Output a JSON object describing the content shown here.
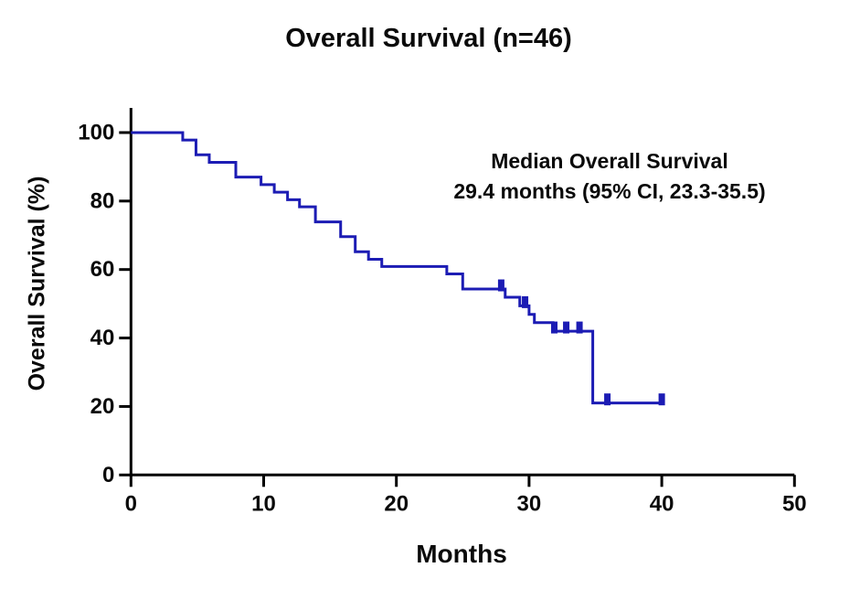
{
  "annotation": {
    "line1": "Median Overall Survival",
    "line2": "29.4 months (95% CI, 23.3-35.5)"
  },
  "chart_data": {
    "type": "line",
    "subtype": "kaplan-meier-step",
    "title": "Overall Survival (n=46)",
    "xlabel": "Months",
    "ylabel": "Overall Survival (%)",
    "xlim": [
      0,
      50
    ],
    "ylim": [
      0,
      100
    ],
    "x_ticks": [
      0,
      10,
      20,
      30,
      40,
      50
    ],
    "y_ticks": [
      0,
      20,
      40,
      60,
      80,
      100
    ],
    "grid": false,
    "legend_position": "none",
    "line_color": "#1c1cb4",
    "axis_color": "#000000",
    "annotation_text": [
      "Median Overall Survival",
      "29.4 months (95% CI, 23.3-35.5)"
    ],
    "series": [
      {
        "name": "Overall Survival",
        "n": 46,
        "steps": [
          [
            0,
            100
          ],
          [
            3.9,
            97.8
          ],
          [
            4.9,
            93.5
          ],
          [
            5.9,
            91.3
          ],
          [
            7.9,
            87.0
          ],
          [
            9.8,
            84.8
          ],
          [
            10.8,
            82.6
          ],
          [
            11.8,
            80.4
          ],
          [
            12.7,
            78.3
          ],
          [
            13.9,
            73.9
          ],
          [
            15.8,
            69.6
          ],
          [
            16.9,
            65.2
          ],
          [
            17.9,
            63.0
          ],
          [
            18.9,
            60.9
          ],
          [
            23.8,
            58.7
          ],
          [
            25.0,
            54.3
          ],
          [
            28.2,
            51.9
          ],
          [
            29.3,
            49.4
          ],
          [
            30.0,
            46.9
          ],
          [
            30.4,
            44.5
          ],
          [
            31.8,
            42.0
          ],
          [
            34.8,
            21.0
          ]
        ],
        "end_time": 40.0,
        "censor_marks": [
          [
            27.9,
            54.3
          ],
          [
            29.7,
            49.4
          ],
          [
            31.9,
            42.0
          ],
          [
            32.8,
            42.0
          ],
          [
            33.8,
            42.0
          ],
          [
            35.9,
            21.0
          ],
          [
            40.0,
            21.0
          ]
        ]
      }
    ]
  }
}
